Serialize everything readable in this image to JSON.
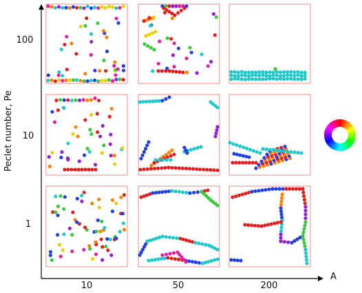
{
  "figure": {
    "x_axis_label": "A",
    "y_axis_label": "Peclet number, Pe",
    "x_ticks": [
      "10",
      "50",
      "200"
    ],
    "y_ticks": [
      "100",
      "10",
      "1"
    ],
    "panel_border_color": "#f08a8a",
    "axis_color": "#000000",
    "particle_palette": [
      "#e02020",
      "#ff7f00",
      "#e8d000",
      "#3cc83c",
      "#20c8c8",
      "#2040e0",
      "#9020d0",
      "#e020a0"
    ],
    "legend": {
      "type": "color-wheel",
      "meaning": "particle orientation hue"
    },
    "panels": [
      {
        "A": "10",
        "Pe": "100",
        "pattern": "walls"
      },
      {
        "A": "50",
        "Pe": "100",
        "pattern": "sparse-clusters"
      },
      {
        "A": "200",
        "Pe": "100",
        "pattern": "band"
      },
      {
        "A": "10",
        "Pe": "10",
        "pattern": "sparse"
      },
      {
        "A": "50",
        "Pe": "10",
        "pattern": "chains"
      },
      {
        "A": "200",
        "Pe": "10",
        "pattern": "cluster-sheet"
      },
      {
        "A": "10",
        "Pe": "1",
        "pattern": "sparse"
      },
      {
        "A": "50",
        "Pe": "1",
        "pattern": "loops"
      },
      {
        "A": "200",
        "Pe": "1",
        "pattern": "network"
      }
    ]
  }
}
